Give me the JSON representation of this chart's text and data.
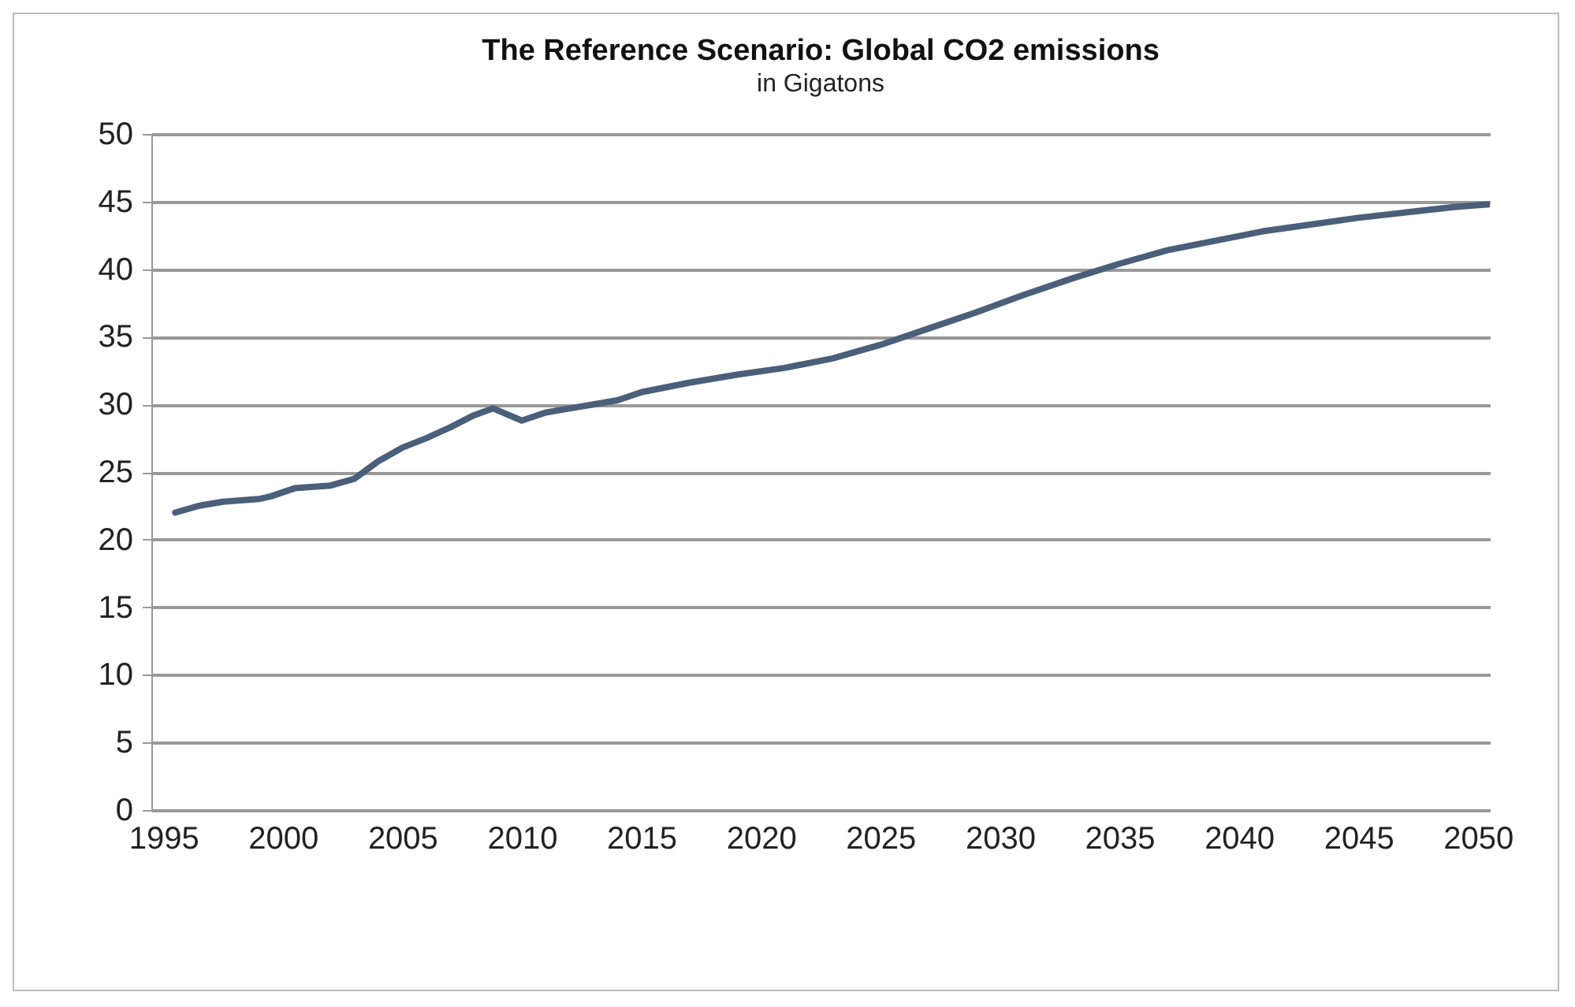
{
  "chart_data": {
    "type": "line",
    "title": "The Reference Scenario: Global CO2 emissions",
    "subtitle": "in Gigatons",
    "x": [
      1995.5,
      1996.5,
      1997.5,
      1999,
      1999.5,
      2000.5,
      2002,
      2003,
      2004,
      2005,
      2006,
      2007,
      2008,
      2008.8,
      2010,
      2011,
      2012,
      2013,
      2014,
      2015,
      2017,
      2019,
      2021,
      2023,
      2025,
      2027,
      2029,
      2031,
      2033,
      2035,
      2037,
      2039,
      2041,
      2043,
      2045,
      2047,
      2049,
      2050.5
    ],
    "series": [
      {
        "color": "#4a5f7a",
        "values": [
          22.0,
          22.5,
          22.8,
          23.0,
          23.2,
          23.8,
          24.0,
          24.5,
          25.8,
          26.8,
          27.5,
          28.3,
          29.2,
          29.7,
          28.8,
          29.4,
          29.7,
          30.0,
          30.3,
          30.9,
          31.6,
          32.2,
          32.7,
          33.4,
          34.4,
          35.6,
          36.8,
          38.1,
          39.3,
          40.4,
          41.4,
          42.1,
          42.8,
          43.3,
          43.8,
          44.2,
          44.6,
          44.8
        ]
      }
    ],
    "xlim": [
      1994.5,
      2050.5
    ],
    "xticks": [
      1995,
      2000,
      2005,
      2010,
      2015,
      2020,
      2025,
      2030,
      2035,
      2040,
      2045,
      2050
    ],
    "ylim": [
      0,
      50
    ],
    "yticks": [
      0,
      5,
      10,
      15,
      20,
      25,
      30,
      35,
      40,
      45,
      50
    ],
    "grid": "y",
    "legend": false,
    "marker": "none",
    "line_style": "solid"
  }
}
